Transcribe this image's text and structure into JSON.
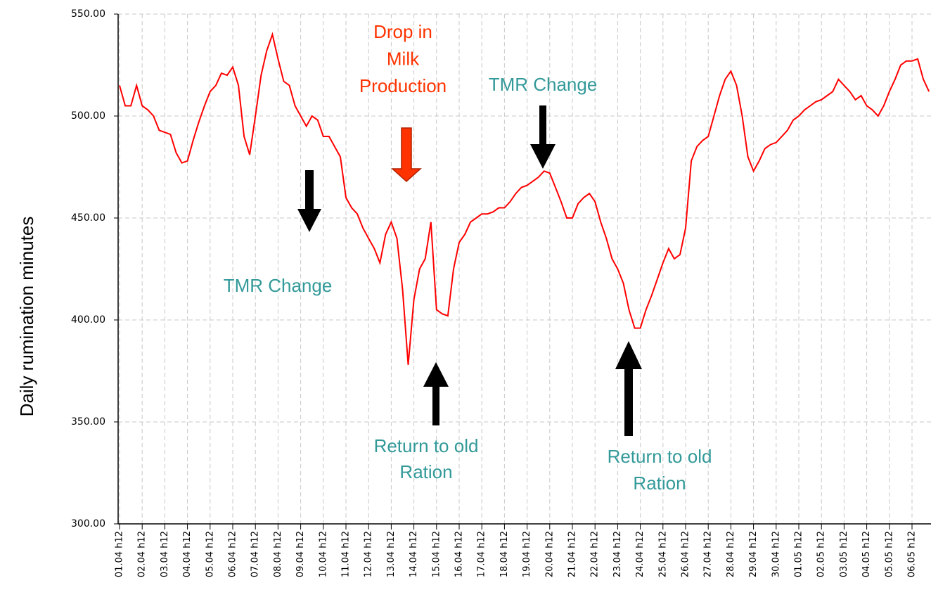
{
  "chart_data": {
    "type": "line",
    "y_label": "Daily rumination minutes",
    "color": "#ff0000",
    "grid": true,
    "ylim": [
      300,
      550
    ],
    "yticks": [
      {
        "value": 300,
        "label": "300.00"
      },
      {
        "value": 350,
        "label": "350.00"
      },
      {
        "value": 400,
        "label": "400.00"
      },
      {
        "value": 450,
        "label": "450.00"
      },
      {
        "value": 500,
        "label": "500.00"
      },
      {
        "value": 550,
        "label": "550.00"
      }
    ],
    "categories": [
      "01.04 h12",
      null,
      null,
      null,
      "02.04 h12",
      null,
      null,
      null,
      "03.04 h12",
      null,
      null,
      null,
      "04.04 h12",
      null,
      null,
      null,
      "05.04 h12",
      null,
      null,
      null,
      "06.04 h12",
      null,
      null,
      null,
      "07.04 h12",
      null,
      null,
      null,
      "08.04 h12",
      null,
      null,
      null,
      "09.04 h12",
      null,
      null,
      null,
      "10.04 h12",
      null,
      null,
      null,
      "11.04 h12",
      null,
      null,
      null,
      "12.04 h12",
      null,
      null,
      null,
      "13.04 h12",
      null,
      null,
      null,
      "14.04 h12",
      null,
      null,
      null,
      "15.04 h12",
      null,
      null,
      null,
      "16.04 h12",
      null,
      null,
      null,
      "17.04 h12",
      null,
      null,
      null,
      "18.04 h12",
      null,
      null,
      null,
      "19.04 h12",
      null,
      null,
      null,
      "20.04 h12",
      null,
      null,
      null,
      "21.04 h12",
      null,
      null,
      null,
      "22.04 h12",
      null,
      null,
      null,
      "23.04 h12",
      null,
      null,
      null,
      "24.04 h12",
      null,
      null,
      null,
      "25.04 h12",
      null,
      null,
      null,
      "26.04 h12",
      null,
      null,
      null,
      "27.04 h12",
      null,
      null,
      null,
      "28.04 h12",
      null,
      null,
      null,
      "29.04 h12",
      null,
      null,
      null,
      "30.04 h12",
      null,
      null,
      null,
      "01.05 h12",
      null,
      null,
      null,
      "02.05 h12",
      null,
      null,
      null,
      "03.05 h12",
      null,
      null,
      null,
      "04.05 h12",
      null,
      null,
      null,
      "05.05 h12",
      null,
      null,
      null,
      "06.05 h12",
      null,
      null,
      null
    ],
    "values": [
      515,
      505,
      505,
      515,
      505,
      503,
      500,
      493,
      492,
      491,
      482,
      477,
      478,
      488,
      497,
      505,
      512,
      515,
      521,
      520,
      524,
      515,
      490,
      481,
      500,
      520,
      532,
      540,
      528,
      517,
      515,
      505,
      500,
      495,
      500,
      498,
      490,
      490,
      485,
      480,
      460,
      455,
      452,
      445,
      440,
      435,
      428,
      442,
      448,
      440,
      415,
      378,
      410,
      425,
      430,
      448,
      405,
      403,
      402,
      425,
      438,
      442,
      448,
      450,
      452,
      452,
      453,
      455,
      455,
      458,
      462,
      465,
      466,
      468,
      470,
      473,
      472,
      465,
      458,
      450,
      450,
      457,
      460,
      462,
      458,
      448,
      440,
      430,
      425,
      418,
      405,
      396,
      396,
      405,
      412,
      420,
      428,
      435,
      430,
      432,
      445,
      478,
      485,
      488,
      490,
      500,
      510,
      518,
      522,
      515,
      500,
      480,
      473,
      478,
      484,
      486,
      487,
      490,
      493,
      498,
      500,
      503,
      505,
      507,
      508,
      510,
      512,
      518,
      515,
      512,
      508,
      510,
      505,
      503,
      500,
      505,
      512,
      518,
      525,
      527,
      527,
      528,
      518,
      512
    ],
    "annotations": [
      {
        "lines": [
          "Drop in",
          "Milk",
          "Production"
        ],
        "color": "#ff3300"
      },
      {
        "lines": [
          "TMR Change"
        ],
        "color": "#339999"
      },
      {
        "lines": [
          "TMR Change"
        ],
        "color": "#339999"
      },
      {
        "lines": [
          "Return to old",
          "Ration"
        ],
        "color": "#339999"
      },
      {
        "lines": [
          "Return to old",
          "Ration"
        ],
        "color": "#339999"
      }
    ]
  }
}
